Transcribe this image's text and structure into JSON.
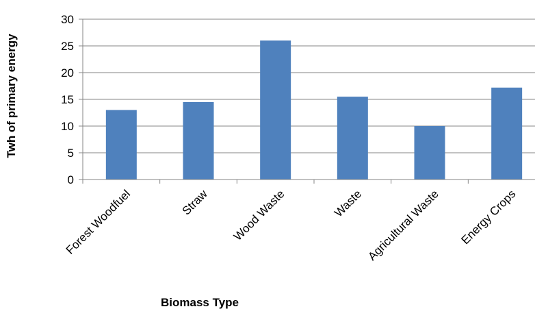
{
  "chart_data": {
    "type": "bar",
    "title": "",
    "xlabel": "Biomass Type",
    "ylabel": "Twh of primary energy",
    "categories": [
      "Forest Woodfuel",
      "Straw",
      "Wood Waste",
      "Waste",
      "Agricultural Waste",
      "Energy Crops"
    ],
    "values": [
      13,
      14.5,
      26,
      15.5,
      10,
      17.2
    ],
    "ylim": [
      0,
      30
    ],
    "yticks": [
      "0",
      "5",
      "10",
      "15",
      "20",
      "25",
      "30"
    ],
    "grid": true,
    "legend": "none",
    "bar_color": "#4f81bd",
    "grid_color": "#868686"
  }
}
